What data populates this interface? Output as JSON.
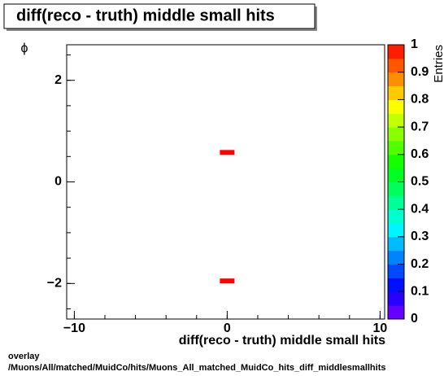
{
  "chart_data": {
    "type": "heatmap",
    "title": "diff(reco - truth) middle small hits",
    "xlabel": "diff(reco - truth) middle small hits",
    "ylabel": "ϕ",
    "zlabel": "Entries",
    "x": [
      0,
      0
    ],
    "y": [
      0.58,
      -1.95
    ],
    "values": [
      1,
      1
    ],
    "xlim": [
      -10.5,
      10.3
    ],
    "xticks": [
      {
        "value": -10,
        "label": "−10"
      },
      0,
      10
    ],
    "ylim": [
      -2.7,
      2.7
    ],
    "yticks": [
      {
        "value": -2,
        "label": "−2"
      },
      0,
      2
    ],
    "zlim": [
      0,
      1
    ],
    "zticks": [
      0,
      0.1,
      0.2,
      0.3,
      0.4,
      0.5,
      0.6,
      0.7,
      0.8,
      0.9,
      1
    ],
    "footer": [
      "overlay",
      "/Muons/All/matched/MuidCo/hits/Muons_All_matched_MuidCo_hits_diff_middlesmallhits"
    ]
  }
}
